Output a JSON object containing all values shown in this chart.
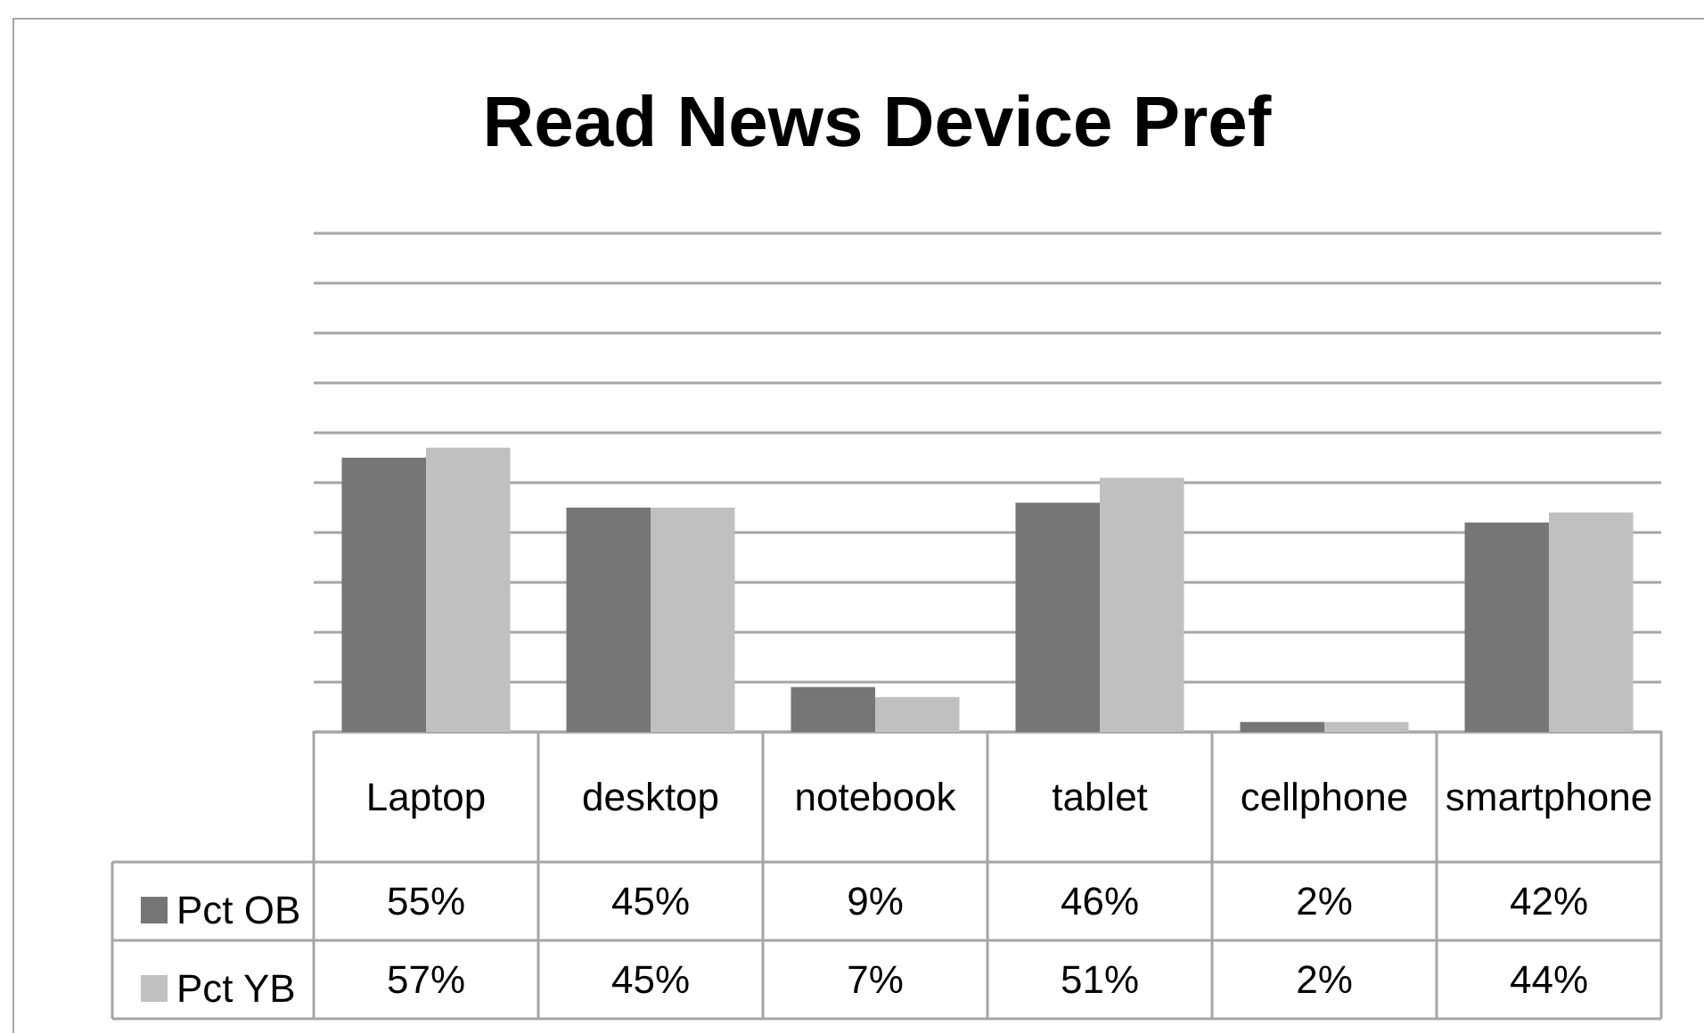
{
  "chart_data": {
    "type": "bar",
    "title": "Read News Device Pref",
    "categories": [
      "Laptop",
      "desktop",
      "notebook",
      "tablet",
      "cellphone",
      "smartphone"
    ],
    "series": [
      {
        "name": "Pct OB",
        "color": "#767676",
        "values": [
          55,
          45,
          9,
          46,
          2,
          42
        ],
        "value_labels": [
          "55%",
          "45%",
          "9%",
          "46%",
          "2%",
          "42%"
        ]
      },
      {
        "name": "Pct YB",
        "color": "#c0c0c0",
        "values": [
          57,
          45,
          7,
          51,
          2,
          44
        ],
        "value_labels": [
          "57%",
          "45%",
          "7%",
          "51%",
          "2%",
          "44%"
        ]
      }
    ],
    "ylim": [
      0,
      100
    ],
    "yticks": [
      {
        "value": 0,
        "label": null
      },
      {
        "value": 10,
        "label": null
      },
      {
        "value": 20,
        "label": null
      },
      {
        "value": 30,
        "label": null
      },
      {
        "value": 40,
        "label": null
      },
      {
        "value": 50,
        "label": null
      },
      {
        "value": 60,
        "label": null
      },
      {
        "value": 70,
        "label": null
      },
      {
        "value": 80,
        "label": null
      },
      {
        "value": 90,
        "label": null
      },
      {
        "value": 100,
        "label": null
      }
    ],
    "grid": "y",
    "legend": "bottom left",
    "tick_labels": "x"
  }
}
